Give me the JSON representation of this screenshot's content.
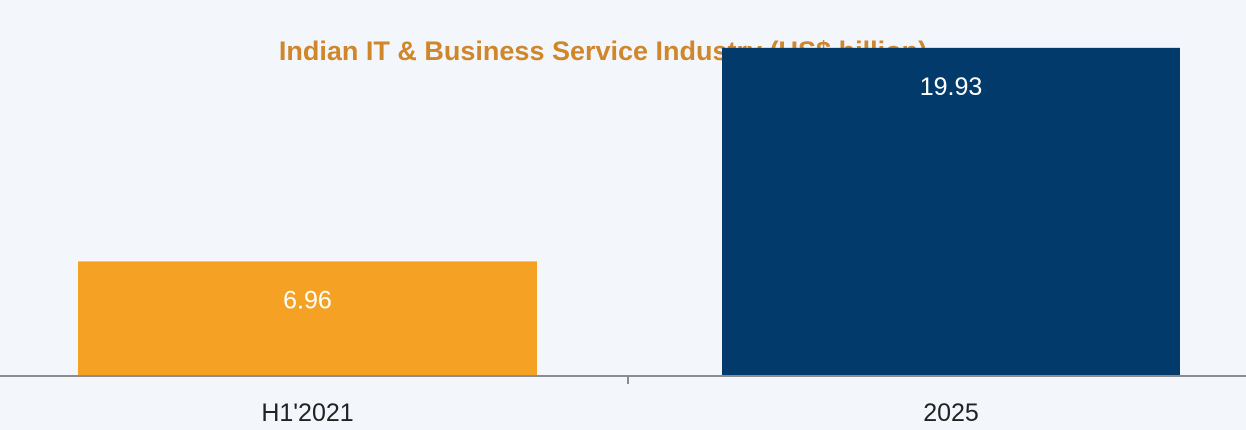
{
  "chart_data": {
    "type": "bar",
    "title": "Indian IT & Business Service Industry (US$ billion)",
    "categories": [
      "H1'2021",
      "2025"
    ],
    "values": [
      6.96,
      19.93
    ],
    "data_labels": [
      "6.96",
      "19.93"
    ],
    "bar_colors": [
      "#f5a123",
      "#013a6b"
    ],
    "title_color": "#d0862b",
    "ylim": [
      0,
      21.5
    ],
    "grid": false,
    "legend": "none"
  }
}
